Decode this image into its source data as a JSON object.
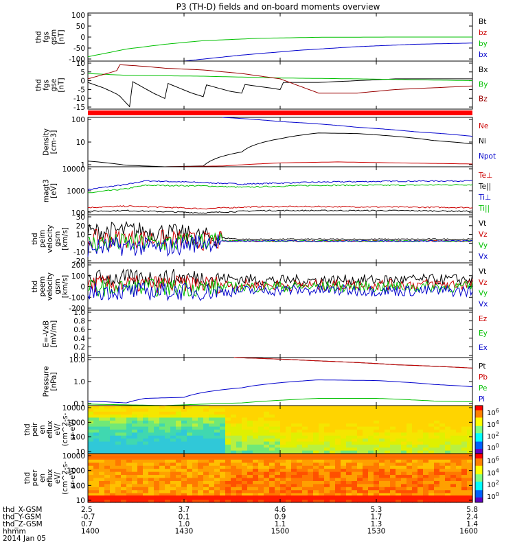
{
  "title": "P3 (TH-D) fields and on-board moments overview",
  "date_label": "2014 Jan 05",
  "orbit_rows": [
    {
      "label": "thd_X-GSM",
      "values": [
        "2.5",
        "3.7",
        "4.6",
        "5.3",
        "5.8"
      ]
    },
    {
      "label": "thd_Y-GSM",
      "values": [
        "-0.7",
        "0.1",
        "0.9",
        "1.7",
        "2.4"
      ]
    },
    {
      "label": "thd_Z-GSM",
      "values": [
        "0.7",
        "1.0",
        "1.1",
        "1.3",
        "1.4"
      ]
    },
    {
      "label": "hhmm",
      "values": [
        "1400",
        "1430",
        "1500",
        "1530",
        "1600"
      ]
    }
  ],
  "colorbar_labels": [
    "10^6",
    "10^4",
    "10^2",
    "10^0"
  ],
  "chart_data": [
    {
      "id": "fgs_gsm",
      "type": "line",
      "ylabel": [
        "thd",
        "fgs",
        "gsm",
        "[nT]"
      ],
      "ylim": [
        -100,
        100
      ],
      "yticks": [
        "100",
        "50",
        "0",
        "-50",
        "-100"
      ],
      "legend": [
        {
          "name": "Bt",
          "color": "#000000"
        },
        {
          "name": "bz",
          "color": "#cc0000"
        },
        {
          "name": "by",
          "color": "#00c000"
        },
        {
          "name": "bx",
          "color": "#0000cc"
        }
      ],
      "series": [
        {
          "name": "by",
          "color": "#00c000",
          "x": [
            0,
            0.1,
            0.2,
            0.3,
            0.45,
            0.6,
            0.8,
            1.0
          ],
          "y": [
            -82,
            -50,
            -30,
            -15,
            -5,
            -1,
            0,
            0
          ]
        },
        {
          "name": "bx",
          "color": "#0000cc",
          "x": [
            0.25,
            0.4,
            0.55,
            0.7,
            0.85,
            1.0
          ],
          "y": [
            -100,
            -75,
            -55,
            -40,
            -30,
            -25
          ]
        }
      ]
    },
    {
      "id": "fgs_gse",
      "type": "line",
      "ylabel": [
        "thd",
        "fgs",
        "gse",
        "[nT]"
      ],
      "ylim": [
        -17,
        10
      ],
      "yticks": [
        "10",
        "5",
        "0",
        "-5",
        "-10",
        "-15"
      ],
      "legend": [
        {
          "name": "Bx",
          "color": "#000000"
        },
        {
          "name": "By",
          "color": "#00c000"
        },
        {
          "name": "Bz",
          "color": "#990000"
        }
      ],
      "series": [
        {
          "name": "Bx",
          "color": "#000000",
          "x": [
            0,
            0.04,
            0.08,
            0.11,
            0.112,
            0.17,
            0.2,
            0.202,
            0.27,
            0.3,
            0.302,
            0.37,
            0.4,
            0.402,
            0.47,
            0.5,
            0.502,
            0.6,
            0.7,
            0.8,
            0.9,
            1.0
          ],
          "y": [
            -2,
            -5,
            -9,
            -16,
            -1,
            -8,
            -11,
            -2,
            -8,
            -10,
            -3,
            -7,
            -8,
            -3,
            -5,
            -6,
            -2,
            -2,
            -1,
            0,
            0,
            0
          ]
        },
        {
          "name": "By",
          "color": "#00c000",
          "x": [
            0,
            0.1,
            0.3,
            0.5,
            0.7,
            0.85,
            1.0
          ],
          "y": [
            3,
            2,
            1.5,
            0.5,
            0,
            -0.5,
            -1
          ]
        },
        {
          "name": "Bz",
          "color": "#990000",
          "x": [
            0,
            0.05,
            0.08,
            0.081,
            0.15,
            0.2,
            0.3,
            0.4,
            0.5,
            0.55,
            0.6,
            0.7,
            0.8,
            0.9,
            1.0
          ],
          "y": [
            0,
            3,
            5,
            8,
            7,
            6,
            5,
            3,
            0,
            -4,
            -8,
            -8,
            -6,
            -5,
            -4
          ]
        }
      ]
    },
    {
      "id": "density",
      "type": "line",
      "ylog": true,
      "ylabel": [
        "Density",
        "[cm-3]"
      ],
      "ylim": [
        0.5,
        200
      ],
      "yticks": [
        "100",
        "10",
        "1"
      ],
      "legend": [
        {
          "name": "Ne",
          "color": "#cc0000"
        },
        {
          "name": "Ni",
          "color": "#000000"
        },
        {
          "name": "Npot",
          "color": "#0000cc"
        }
      ],
      "series": [
        {
          "name": "Ni",
          "color": "#000000",
          "x": [
            0,
            0.1,
            0.2,
            0.3,
            0.4,
            0.5,
            0.6,
            0.7,
            0.8,
            0.9,
            1.0
          ],
          "y": [
            1.0,
            0.6,
            0.5,
            0.55,
            3,
            15,
            30,
            28,
            20,
            12,
            8
          ]
        },
        {
          "name": "Ne",
          "color": "#cc0000",
          "x": [
            0,
            0.2,
            0.35,
            0.5,
            0.65,
            0.8,
            1.0
          ],
          "y": [
            0.5,
            0.5,
            0.55,
            0.8,
            0.9,
            0.8,
            0.7
          ]
        },
        {
          "name": "Npot",
          "color": "#0000cc",
          "x": [
            0.35,
            0.5,
            0.7,
            0.85,
            1.0
          ],
          "y": [
            200,
            120,
            60,
            35,
            20
          ]
        }
      ]
    },
    {
      "id": "temperature",
      "type": "line",
      "ylog": true,
      "ylabel": [
        "magt3",
        "[eV]"
      ],
      "ylim": [
        100,
        10000
      ],
      "yticks": [
        "10000",
        "1000",
        "100"
      ],
      "legend": [
        {
          "name": "Te⊥",
          "color": "#cc0000"
        },
        {
          "name": "Te||",
          "color": "#000000"
        },
        {
          "name": "Ti⊥",
          "color": "#0000cc"
        },
        {
          "name": "Ti||",
          "color": "#00c000"
        }
      ],
      "series": [
        {
          "name": "Ti⊥",
          "color": "#0000cc",
          "x": [
            0,
            0.1,
            0.15,
            0.3,
            0.4,
            0.6,
            0.8,
            1.0
          ],
          "y": [
            1100,
            1800,
            2600,
            2200,
            1900,
            2300,
            2500,
            2600
          ]
        },
        {
          "name": "Ti||",
          "color": "#00c000",
          "x": [
            0,
            0.1,
            0.15,
            0.3,
            0.4,
            0.6,
            0.8,
            1.0
          ],
          "y": [
            800,
            1200,
            1700,
            1600,
            1400,
            1700,
            1700,
            1800
          ]
        },
        {
          "name": "Te⊥",
          "color": "#cc0000",
          "x": [
            0,
            0.1,
            0.3,
            0.45,
            0.6,
            0.8,
            1.0
          ],
          "y": [
            200,
            230,
            180,
            220,
            220,
            210,
            200
          ]
        },
        {
          "name": "Te||",
          "color": "#000000",
          "x": [
            0,
            0.1,
            0.3,
            0.45,
            0.6,
            0.8,
            1.0
          ],
          "y": [
            140,
            150,
            120,
            150,
            150,
            150,
            140
          ]
        }
      ]
    },
    {
      "id": "peim_velocity",
      "type": "line",
      "ylabel": [
        "thd",
        "peim",
        "velocity",
        "gsm",
        "[km/s]"
      ],
      "ylim": [
        -25,
        30
      ],
      "yticks": [
        "30",
        "20",
        "10",
        "0",
        "-10",
        "-20"
      ],
      "legend": [
        {
          "name": "Vt",
          "color": "#000000"
        },
        {
          "name": "Vz",
          "color": "#cc0000"
        },
        {
          "name": "Vy",
          "color": "#00c000"
        },
        {
          "name": "Vx",
          "color": "#0000cc"
        }
      ],
      "series": [
        {
          "name": "Vt",
          "color": "#000000",
          "x": [
            0,
            0.1,
            0.2,
            0.3,
            0.4,
            1.0
          ],
          "y": [
            10,
            12,
            10,
            5,
            2,
            2
          ]
        },
        {
          "name": "Vz",
          "color": "#cc0000",
          "x": [
            0,
            0.1,
            0.2,
            0.3,
            0.4,
            1.0
          ],
          "y": [
            2,
            3,
            2,
            0,
            0,
            0
          ]
        },
        {
          "name": "Vy",
          "color": "#00c000",
          "x": [
            0,
            0.1,
            0.2,
            0.3,
            0.4,
            1.0
          ],
          "y": [
            -3,
            -2,
            -3,
            0,
            0,
            0
          ]
        },
        {
          "name": "Vx",
          "color": "#0000cc",
          "x": [
            0,
            0.1,
            0.2,
            0.3,
            0.4,
            1.0
          ],
          "y": [
            -8,
            -6,
            -8,
            -1,
            0,
            0
          ]
        }
      ]
    },
    {
      "id": "peem_velocity",
      "type": "line",
      "ylabel": [
        "thd",
        "peem",
        "velocity",
        "gsm",
        "[km/s]"
      ],
      "ylim": [
        -200,
        200
      ],
      "yticks": [
        "200",
        "100",
        "0",
        "-100",
        "-200"
      ],
      "legend": [
        {
          "name": "Vt",
          "color": "#000000"
        },
        {
          "name": "Vz",
          "color": "#cc0000"
        },
        {
          "name": "Vy",
          "color": "#00c000"
        },
        {
          "name": "Vx",
          "color": "#0000cc"
        }
      ],
      "series": [
        {
          "name": "Vt",
          "color": "#000000",
          "x": [
            0,
            0.3,
            0.5,
            1.0
          ],
          "y": [
            70,
            75,
            50,
            60
          ]
        },
        {
          "name": "Vz",
          "color": "#cc0000",
          "x": [
            0,
            0.3,
            0.5,
            1.0
          ],
          "y": [
            20,
            20,
            10,
            20
          ]
        },
        {
          "name": "Vy",
          "color": "#00c000",
          "x": [
            0,
            0.3,
            0.5,
            1.0
          ],
          "y": [
            -10,
            -10,
            0,
            -5
          ]
        },
        {
          "name": "Vx",
          "color": "#0000cc",
          "x": [
            0,
            0.3,
            0.5,
            1.0
          ],
          "y": [
            -40,
            -45,
            -30,
            -40
          ]
        }
      ]
    },
    {
      "id": "efield",
      "type": "line",
      "ylabel": [
        "E=-VxB",
        "[mV/m]"
      ],
      "ylim": [
        0,
        1
      ],
      "yticks": [
        "1.0",
        "0.8",
        "0.6",
        "0.4",
        "0.2",
        "0.0"
      ],
      "legend": [
        {
          "name": "Ez",
          "color": "#cc0000"
        },
        {
          "name": "Ey",
          "color": "#00c000"
        },
        {
          "name": "Ex",
          "color": "#0000cc"
        }
      ],
      "series": []
    },
    {
      "id": "pressure",
      "type": "line",
      "ylog": true,
      "ylabel": [
        "Pressure",
        "[nPa]"
      ],
      "ylim": [
        0.02,
        30
      ],
      "yticks": [
        "10.0",
        "1.0",
        "0.1"
      ],
      "legend": [
        {
          "name": "Pt",
          "color": "#000000"
        },
        {
          "name": "Pb",
          "color": "#cc0000"
        },
        {
          "name": "Pe",
          "color": "#00c000"
        },
        {
          "name": "Pi",
          "color": "#0000cc"
        }
      ],
      "series": [
        {
          "name": "Pt",
          "color": "#000000",
          "x": [
            0.38,
            0.6,
            0.8,
            1.0
          ],
          "y": [
            30,
            18,
            10,
            6
          ]
        },
        {
          "name": "Pb",
          "color": "#cc0000",
          "x": [
            0.38,
            0.6,
            0.8,
            1.0
          ],
          "y": [
            30,
            18,
            10,
            6
          ]
        },
        {
          "name": "Pi",
          "color": "#0000cc",
          "x": [
            0,
            0.1,
            0.15,
            0.25,
            0.4,
            0.6,
            0.75,
            0.9,
            1.0
          ],
          "y": [
            0.04,
            0.03,
            0.06,
            0.07,
            0.3,
            1.0,
            0.9,
            0.5,
            0.35
          ]
        },
        {
          "name": "Pe",
          "color": "#00c000",
          "x": [
            0,
            0.2,
            0.4,
            0.6,
            0.75,
            0.9,
            1.0
          ],
          "y": [
            0.025,
            0.02,
            0.03,
            0.06,
            0.06,
            0.04,
            0.035
          ]
        }
      ]
    },
    {
      "id": "peir_eflux",
      "type": "heatmap",
      "ylabel": [
        "thd",
        "peir",
        "en",
        "eflux",
        "eV/",
        "(cm^2-s-",
        "sr-eV)"
      ],
      "yticks": [
        "10000",
        "1000",
        "100",
        "10"
      ],
      "pattern": "ion"
    },
    {
      "id": "peer_eflux",
      "type": "heatmap",
      "ylabel": [
        "thd",
        "peer",
        "en",
        "eflux",
        "eV/",
        "(cm^2-s-",
        "sr-eV)"
      ],
      "yticks": [
        "10000",
        "1000",
        "100",
        "10"
      ],
      "pattern": "electron"
    }
  ]
}
